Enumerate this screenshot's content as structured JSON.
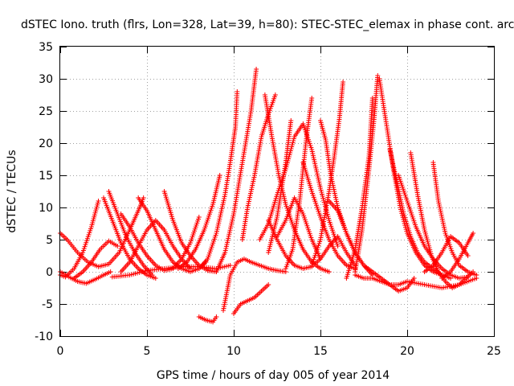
{
  "chart_data": {
    "type": "scatter",
    "title": "dSTEC Iono. truth (flrs, Lon=328, Lat=39, h=80): STEC-STEC_elemax in phase cont. arc",
    "xlabel": "GPS time / hours of day 005 of year 2014",
    "ylabel": "dSTEC  / TECUs",
    "xlim": [
      0,
      25
    ],
    "ylim": [
      -10,
      35
    ],
    "xticks": [
      0,
      5,
      10,
      15,
      20,
      25
    ],
    "yticks": [
      -10,
      -5,
      0,
      5,
      10,
      15,
      20,
      25,
      30,
      35
    ],
    "grid": true,
    "marker": "+",
    "color": "#ff0000",
    "arcs": [
      {
        "x": [
          0.0,
          0.3,
          0.8,
          1.3,
          1.8,
          2.2
        ],
        "y": [
          -0.5,
          -0.8,
          0.5,
          3.0,
          7.0,
          11.0
        ]
      },
      {
        "x": [
          0.0,
          0.4,
          1.0,
          1.6,
          2.2,
          2.8,
          3.4,
          4.0,
          4.5,
          4.8
        ],
        "y": [
          6.0,
          5.0,
          3.0,
          1.5,
          0.8,
          1.2,
          3.0,
          6.5,
          9.5,
          11.5
        ]
      },
      {
        "x": [
          0.0,
          0.5,
          1.0,
          1.5,
          2.0,
          2.5,
          2.9
        ],
        "y": [
          0.0,
          -0.8,
          -1.5,
          -1.8,
          -1.2,
          -0.5,
          0.0
        ]
      },
      {
        "x": [
          0.8,
          1.3,
          1.8,
          2.3,
          2.8,
          3.3
        ],
        "y": [
          -1.0,
          0.0,
          1.5,
          3.5,
          4.8,
          4.0
        ]
      },
      {
        "x": [
          2.5,
          3.0,
          3.5,
          4.0,
          4.5,
          5.0,
          5.5
        ],
        "y": [
          11.5,
          8.0,
          4.5,
          2.0,
          0.5,
          -0.5,
          -1.0
        ]
      },
      {
        "x": [
          2.8,
          3.3,
          3.8,
          4.3,
          4.8,
          5.3
        ],
        "y": [
          12.5,
          9.0,
          5.5,
          3.0,
          1.0,
          -0.5
        ]
      },
      {
        "x": [
          3.5,
          4.0,
          4.5,
          5.0,
          5.5,
          6.0,
          6.5,
          7.0,
          7.5,
          8.0
        ],
        "y": [
          9.0,
          7.0,
          4.5,
          2.5,
          1.0,
          0.2,
          0.5,
          2.0,
          4.5,
          8.5
        ]
      },
      {
        "x": [
          3.5,
          4.0,
          4.5,
          5.0,
          5.5,
          6.0,
          6.5,
          7.0,
          7.5
        ],
        "y": [
          0.0,
          1.5,
          4.0,
          6.5,
          8.0,
          6.5,
          4.0,
          2.0,
          0.5
        ]
      },
      {
        "x": [
          4.5,
          5.0,
          5.5,
          6.0,
          6.5,
          7.0,
          7.5,
          8.0,
          8.4
        ],
        "y": [
          11.5,
          9.5,
          6.5,
          3.5,
          1.5,
          0.5,
          0.0,
          0.5,
          1.5
        ]
      },
      {
        "x": [
          3.0,
          4.0,
          5.0,
          6.0,
          7.0,
          8.0,
          9.0,
          9.8
        ],
        "y": [
          -0.8,
          -0.5,
          0.2,
          0.5,
          0.8,
          0.8,
          0.5,
          1.0
        ]
      },
      {
        "x": [
          6.0,
          6.5,
          7.0,
          7.5,
          8.0,
          8.5,
          9.0
        ],
        "y": [
          12.5,
          8.0,
          4.5,
          2.5,
          1.0,
          0.2,
          0.0
        ]
      },
      {
        "x": [
          6.8,
          7.3,
          7.8,
          8.3,
          8.8,
          9.2
        ],
        "y": [
          0.5,
          1.5,
          3.5,
          6.5,
          10.5,
          15.0
        ]
      },
      {
        "x": [
          8.0,
          8.5,
          9.0,
          9.5,
          9.8,
          10.1,
          10.2
        ],
        "y": [
          0.5,
          2.0,
          6.0,
          12.0,
          17.0,
          22.5,
          28.0
        ]
      },
      {
        "x": [
          8.0,
          8.4,
          8.8,
          9.0
        ],
        "y": [
          -7.0,
          -7.5,
          -7.8,
          -7.0
        ]
      },
      {
        "x": [
          9.0,
          9.5,
          10.0,
          10.5,
          11.0,
          11.3
        ],
        "y": [
          0.0,
          3.0,
          9.0,
          17.0,
          25.0,
          31.5
        ]
      },
      {
        "x": [
          9.4,
          9.8,
          10.2,
          10.6,
          11.0,
          11.5,
          12.0,
          12.5,
          13.0
        ],
        "y": [
          -6.0,
          -0.5,
          1.5,
          2.0,
          1.5,
          1.0,
          0.5,
          0.2,
          0.0
        ]
      },
      {
        "x": [
          10.0,
          10.4,
          10.8,
          11.2,
          11.6,
          12.0
        ],
        "y": [
          -6.5,
          -5.0,
          -4.5,
          -4.0,
          -3.0,
          -2.0
        ]
      },
      {
        "x": [
          10.5,
          10.8,
          11.2,
          11.6,
          12.0,
          12.4
        ],
        "y": [
          5.0,
          10.0,
          15.0,
          21.0,
          24.5,
          27.5
        ]
      },
      {
        "x": [
          11.8,
          12.2,
          12.6,
          13.0,
          13.5,
          14.0,
          14.5,
          15.0,
          15.5
        ],
        "y": [
          27.5,
          21.0,
          15.0,
          10.5,
          6.5,
          3.5,
          1.5,
          0.5,
          0.0
        ]
      },
      {
        "x": [
          11.5,
          12.0,
          12.5,
          13.0,
          13.5,
          14.0,
          14.5,
          15.0,
          15.5,
          16.0
        ],
        "y": [
          5.0,
          7.5,
          12.0,
          16.0,
          21.0,
          23.0,
          19.0,
          13.0,
          8.0,
          4.0
        ]
      },
      {
        "x": [
          12.0,
          12.5,
          13.0,
          13.3
        ],
        "y": [
          3.0,
          8.5,
          17.0,
          23.5
        ]
      },
      {
        "x": [
          12.0,
          12.5,
          13.0,
          13.5,
          14.0,
          14.5,
          15.0,
          15.5,
          16.0,
          16.5,
          17.0
        ],
        "y": [
          8.0,
          5.0,
          2.5,
          1.0,
          0.5,
          0.8,
          2.0,
          4.0,
          5.5,
          3.0,
          1.0
        ]
      },
      {
        "x": [
          12.5,
          13.0,
          13.5,
          14.0,
          14.5,
          15.0
        ],
        "y": [
          5.5,
          8.0,
          11.5,
          9.0,
          5.0,
          2.0
        ]
      },
      {
        "x": [
          13.0,
          13.4,
          13.8,
          14.2,
          14.5
        ],
        "y": [
          0.5,
          3.5,
          11.0,
          21.0,
          27.0
        ]
      },
      {
        "x": [
          14.0,
          14.5,
          15.0,
          15.5,
          16.0,
          16.5,
          17.0
        ],
        "y": [
          17.0,
          12.5,
          8.5,
          5.0,
          2.5,
          1.0,
          0.5
        ]
      },
      {
        "x": [
          15.0,
          15.3,
          15.6,
          16.0,
          16.5,
          17.0,
          17.5,
          18.0
        ],
        "y": [
          23.5,
          20.5,
          15.0,
          10.0,
          6.0,
          3.0,
          1.0,
          -0.5
        ]
      },
      {
        "x": [
          14.5,
          15.0,
          15.5,
          15.8,
          16.1,
          16.3
        ],
        "y": [
          1.0,
          5.0,
          12.5,
          18.0,
          24.0,
          29.5
        ]
      },
      {
        "x": [
          15.5,
          16.0,
          16.5,
          17.0,
          17.5,
          18.0,
          18.5,
          19.0,
          19.5,
          20.0,
          20.4
        ],
        "y": [
          11.0,
          9.5,
          6.0,
          3.0,
          1.0,
          0.0,
          -1.0,
          -2.0,
          -3.0,
          -2.5,
          -1.0
        ]
      },
      {
        "x": [
          16.5,
          17.0,
          17.4,
          17.8,
          18.0
        ],
        "y": [
          -1.0,
          3.5,
          10.0,
          18.0,
          27.0
        ]
      },
      {
        "x": [
          17.0,
          17.4,
          17.8,
          18.1,
          18.3
        ],
        "y": [
          0.0,
          6.5,
          16.0,
          24.0,
          30.5
        ]
      },
      {
        "x": [
          18.4,
          18.8,
          19.2,
          19.6,
          20.0,
          20.5,
          21.0,
          21.5,
          22.0
        ],
        "y": [
          30.0,
          23.0,
          16.0,
          10.0,
          6.0,
          3.0,
          1.0,
          0.0,
          -0.5
        ]
      },
      {
        "x": [
          19.0,
          19.4,
          19.8,
          20.2,
          20.6,
          21.0,
          21.5,
          22.0,
          22.5
        ],
        "y": [
          19.0,
          14.0,
          9.0,
          5.5,
          3.0,
          1.5,
          0.5,
          -0.5,
          -1.0
        ]
      },
      {
        "x": [
          19.5,
          20.0,
          20.5,
          21.0,
          21.5,
          22.0,
          22.5,
          23.0,
          23.5
        ],
        "y": [
          15.0,
          11.0,
          7.0,
          4.0,
          2.0,
          0.5,
          -0.5,
          -1.0,
          -0.8
        ]
      },
      {
        "x": [
          20.2,
          20.6,
          21.0,
          21.4,
          21.8,
          22.2,
          22.6,
          23.0,
          23.4,
          23.8
        ],
        "y": [
          18.5,
          12.0,
          6.5,
          2.5,
          0.0,
          -1.5,
          -2.5,
          -2.0,
          -1.0,
          0.0
        ]
      },
      {
        "x": [
          21.5,
          21.8,
          22.2,
          22.6,
          23.0,
          23.5,
          24.0
        ],
        "y": [
          17.0,
          11.0,
          6.0,
          3.0,
          1.0,
          0.0,
          -0.5
        ]
      },
      {
        "x": [
          21.0,
          21.5,
          22.0,
          22.5,
          23.0,
          23.5
        ],
        "y": [
          0.0,
          1.0,
          3.0,
          5.5,
          4.5,
          2.5
        ]
      },
      {
        "x": [
          22.0,
          22.5,
          23.0,
          23.5,
          23.8
        ],
        "y": [
          -1.0,
          0.0,
          2.0,
          4.5,
          6.0
        ]
      },
      {
        "x": [
          20.0,
          21.0,
          22.0,
          23.0,
          24.0
        ],
        "y": [
          -1.5,
          -2.0,
          -2.5,
          -2.0,
          -1.0
        ]
      },
      {
        "x": [
          17.0,
          17.5,
          18.0,
          18.5,
          19.0,
          19.5,
          20.0
        ],
        "y": [
          -0.5,
          -1.0,
          -1.0,
          -1.5,
          -2.0,
          -2.0,
          -1.5
        ]
      }
    ]
  }
}
